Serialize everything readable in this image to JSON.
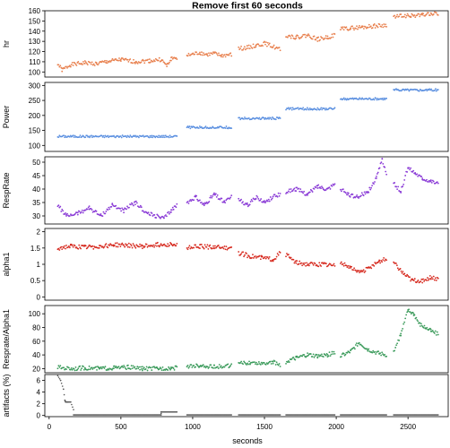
{
  "chart_data": {
    "type": "scatter",
    "title": "Remove first 60 seconds",
    "xlabel": "seconds",
    "xlim": [
      -30,
      2780
    ],
    "xticks": [
      0,
      500,
      1000,
      1500,
      2000,
      2500
    ],
    "segments": [
      [
        60,
        890
      ],
      [
        960,
        1270
      ],
      [
        1320,
        1610
      ],
      [
        1650,
        1990
      ],
      [
        2030,
        2350
      ],
      [
        2400,
        2710
      ]
    ],
    "panels": [
      {
        "key": "hr",
        "ylabel": "hr",
        "color": "#e8804e",
        "ylim": [
          95,
          160
        ],
        "yticks": [
          100,
          110,
          120,
          130,
          140,
          150,
          160
        ],
        "series": [
          {
            "x": [
              60,
              90,
              150,
              250,
              330,
              400,
              500,
              600,
              700,
              780,
              820,
              850,
              890
            ],
            "y": [
              108,
              102,
              107,
              109,
              108,
              110,
              112,
              110,
              111,
              112,
              106,
              113,
              114
            ]
          },
          {
            "x": [
              960,
              1050,
              1100,
              1150,
              1200,
              1270
            ],
            "y": [
              116,
              119,
              117,
              118,
              116,
              117
            ]
          },
          {
            "x": [
              1320,
              1380,
              1440,
              1500,
              1560,
              1610
            ],
            "y": [
              123,
              124,
              126,
              128,
              125,
              122
            ]
          },
          {
            "x": [
              1650,
              1720,
              1800,
              1870,
              1940,
              1990
            ],
            "y": [
              136,
              134,
              136,
              132,
              134,
              136
            ]
          },
          {
            "x": [
              2030,
              2100,
              2180,
              2260,
              2350
            ],
            "y": [
              142,
              143,
              144,
              145,
              146
            ]
          },
          {
            "x": [
              2400,
              2450,
              2520,
              2600,
              2660,
              2710
            ],
            "y": [
              154,
              155,
              155,
              156,
              157,
              157
            ]
          }
        ]
      },
      {
        "key": "power",
        "ylabel": "Power",
        "color": "#5a8fe0",
        "ylim": [
          80,
          310
        ],
        "yticks": [
          100,
          150,
          200,
          250,
          300
        ],
        "series": [
          {
            "x": [
              60,
              890
            ],
            "y": [
              130,
              130
            ]
          },
          {
            "x": [
              960,
              1270
            ],
            "y": [
              160,
              160
            ]
          },
          {
            "x": [
              1320,
              1610
            ],
            "y": [
              190,
              190
            ]
          },
          {
            "x": [
              1650,
              1990
            ],
            "y": [
              222,
              222
            ]
          },
          {
            "x": [
              2030,
              2350
            ],
            "y": [
              255,
              255
            ]
          },
          {
            "x": [
              2400,
              2710
            ],
            "y": [
              285,
              285
            ]
          }
        ]
      },
      {
        "key": "resp",
        "ylabel": "RespRate",
        "color": "#8a3bd6",
        "ylim": [
          27,
          52
        ],
        "yticks": [
          30,
          35,
          40,
          45,
          50
        ],
        "series": [
          {
            "x": [
              60,
              120,
              200,
              280,
              360,
              440,
              520,
              600,
              680,
              740,
              800,
              850,
              890
            ],
            "y": [
              34,
              30,
              31,
              33,
              30,
              34,
              32,
              35,
              31,
              30,
              29,
              32,
              34
            ]
          },
          {
            "x": [
              960,
              1020,
              1080,
              1150,
              1220,
              1270
            ],
            "y": [
              35,
              37,
              34,
              38,
              35,
              37
            ]
          },
          {
            "x": [
              1320,
              1380,
              1440,
              1500,
              1560,
              1610
            ],
            "y": [
              36,
              34,
              37,
              35,
              37,
              38
            ]
          },
          {
            "x": [
              1650,
              1720,
              1800,
              1870,
              1940,
              1990
            ],
            "y": [
              39,
              40,
              38,
              41,
              40,
              42
            ]
          },
          {
            "x": [
              2030,
              2080,
              2150,
              2220,
              2280,
              2320,
              2350
            ],
            "y": [
              40,
              38,
              37,
              39,
              44,
              51,
              46
            ]
          },
          {
            "x": [
              2400,
              2450,
              2500,
              2550,
              2600,
              2660,
              2710
            ],
            "y": [
              42,
              39,
              48,
              46,
              44,
              43,
              42
            ]
          }
        ]
      },
      {
        "key": "alpha",
        "ylabel": "alpha1",
        "color": "#d62a1f",
        "ylim": [
          -0.1,
          2.1
        ],
        "yticks": [
          0,
          0.5,
          1,
          1.5,
          2
        ],
        "series": [
          {
            "x": [
              60,
              150,
              250,
              350,
              450,
              550,
              650,
              750,
              850,
              890
            ],
            "y": [
              1.5,
              1.55,
              1.52,
              1.55,
              1.6,
              1.58,
              1.55,
              1.6,
              1.62,
              1.58
            ]
          },
          {
            "x": [
              960,
              1050,
              1150,
              1270
            ],
            "y": [
              1.5,
              1.55,
              1.52,
              1.5
            ]
          },
          {
            "x": [
              1320,
              1400,
              1480,
              1560,
              1610
            ],
            "y": [
              1.35,
              1.25,
              1.2,
              1.15,
              1.35
            ]
          },
          {
            "x": [
              1650,
              1720,
              1800,
              1900,
              1990
            ],
            "y": [
              1.3,
              1.05,
              1.0,
              1.0,
              0.95
            ]
          },
          {
            "x": [
              2030,
              2100,
              2150,
              2220,
              2300,
              2350
            ],
            "y": [
              1.05,
              0.9,
              0.75,
              0.85,
              1.1,
              1.15
            ]
          },
          {
            "x": [
              2400,
              2470,
              2530,
              2600,
              2660,
              2710
            ],
            "y": [
              1.05,
              0.7,
              0.5,
              0.5,
              0.6,
              0.55
            ]
          }
        ]
      },
      {
        "key": "ratio",
        "ylabel": "Resprate/Alpha1",
        "color": "#3a9a5a",
        "ylim": [
          14,
          112
        ],
        "yticks": [
          20,
          40,
          60,
          80,
          100
        ],
        "series": [
          {
            "x": [
              60,
              150,
              250,
              350,
              450,
              550,
              650,
              750,
              850,
              890
            ],
            "y": [
              22,
              20,
              21,
              20,
              21,
              22,
              20,
              20,
              21,
              21
            ]
          },
          {
            "x": [
              960,
              1050,
              1150,
              1270
            ],
            "y": [
              23,
              24,
              23,
              24
            ]
          },
          {
            "x": [
              1320,
              1400,
              1480,
              1560,
              1610
            ],
            "y": [
              27,
              29,
              28,
              30,
              25
            ]
          },
          {
            "x": [
              1650,
              1720,
              1800,
              1870,
              1940,
              1990
            ],
            "y": [
              30,
              35,
              40,
              38,
              40,
              44
            ]
          },
          {
            "x": [
              2030,
              2100,
              2160,
              2220,
              2300,
              2350
            ],
            "y": [
              38,
              45,
              58,
              48,
              42,
              40
            ]
          },
          {
            "x": [
              2400,
              2450,
              2500,
              2540,
              2580,
              2620,
              2660,
              2710
            ],
            "y": [
              45,
              70,
              105,
              100,
              85,
              80,
              75,
              70
            ]
          }
        ]
      },
      {
        "key": "artifacts",
        "ylabel": "artifacts (%)",
        "color": "#555555",
        "ylim": [
          -0.2,
          7
        ],
        "yticks": [
          0,
          2,
          4,
          6
        ],
        "series": [
          {
            "x": [
              60,
              80,
              100,
              110,
              115,
              130,
              150,
              170
            ],
            "y": [
              6.8,
              6.0,
              4.5,
              2.6,
              2.3,
              2.3,
              2.3,
              1.0
            ]
          },
          {
            "x": [
              170,
              780,
              780,
              890
            ],
            "y": [
              0.1,
              0.1,
              0.6,
              0.6
            ]
          },
          {
            "x": [
              960,
              1270
            ],
            "y": [
              0.1,
              0.1
            ]
          },
          {
            "x": [
              1320,
              1610
            ],
            "y": [
              0.1,
              0.1
            ]
          },
          {
            "x": [
              1650,
              1990
            ],
            "y": [
              0.1,
              0.1
            ]
          },
          {
            "x": [
              2030,
              2350
            ],
            "y": [
              0.1,
              0.1
            ]
          },
          {
            "x": [
              2400,
              2710
            ],
            "y": [
              0.1,
              0.1
            ]
          }
        ]
      }
    ]
  }
}
